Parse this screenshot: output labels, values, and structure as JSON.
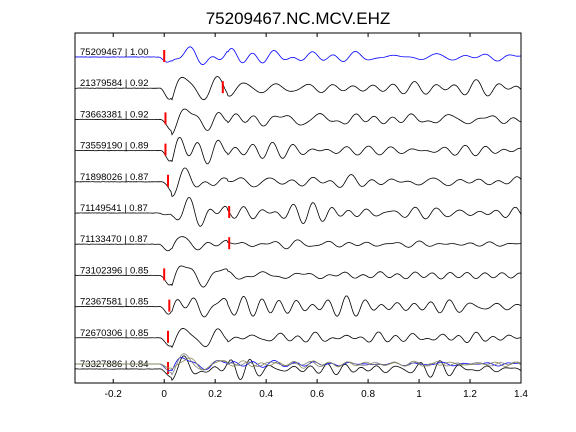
{
  "chart_data": {
    "type": "line",
    "title": "75209467.NC.MCV.EHZ",
    "xlabel": "",
    "ylabel": "",
    "xlim": [
      -0.35,
      1.4
    ],
    "xticks": [
      -0.2,
      0,
      0.2,
      0.4,
      0.6,
      0.8,
      1,
      1.2,
      1.4
    ],
    "xtick_labels": [
      "-0.2",
      "0",
      "0.2",
      "0.4",
      "0.6",
      "0.8",
      "1",
      "1.2",
      "1.4"
    ],
    "grid": false,
    "traces": [
      {
        "label": "75209467 | 1.00",
        "pick_time": 0.0,
        "color": "#0000ff"
      },
      {
        "label": "21379584 | 0.92",
        "pick_time": 0.23,
        "color": "#000000"
      },
      {
        "label": "73663381 | 0.92",
        "pick_time": 0.005,
        "color": "#000000"
      },
      {
        "label": "73559190 | 0.89",
        "pick_time": 0.005,
        "color": "#000000"
      },
      {
        "label": "71898026 | 0.87",
        "pick_time": 0.015,
        "color": "#000000"
      },
      {
        "label": "71149541 | 0.87",
        "pick_time": 0.255,
        "color": "#000000"
      },
      {
        "label": "71133470 | 0.87",
        "pick_time": 0.255,
        "color": "#000000"
      },
      {
        "label": "73102396 | 0.85",
        "pick_time": 0.0,
        "color": "#000000"
      },
      {
        "label": "72367581 | 0.85",
        "pick_time": 0.02,
        "color": "#000000"
      },
      {
        "label": "72670306 | 0.85",
        "pick_time": 0.015,
        "color": "#000000"
      },
      {
        "label": "73327886 | 0.84",
        "pick_time": 0.015,
        "color": "#000000"
      }
    ],
    "stack": {
      "colors": [
        "#0000ff",
        "#808080",
        "#8c8c5a"
      ]
    },
    "colors": {
      "reference": "#0000ff",
      "trace": "#000000",
      "pick": "#ff0000"
    }
  }
}
